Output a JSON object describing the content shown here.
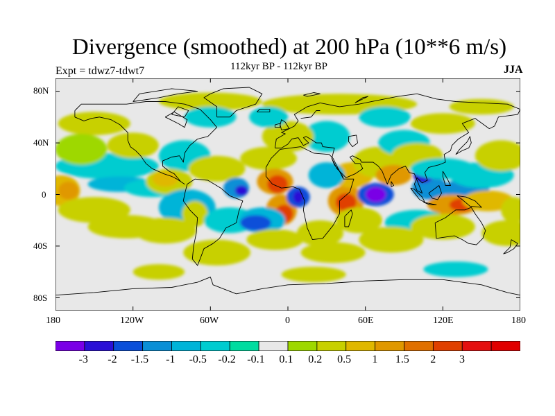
{
  "title": "Divergence (smoothed) at 200 hPa (10**6 m/s)",
  "experiment": "Expt = tdwz7-tdwt7",
  "subtitle": "112kyr BP - 112kyr BP",
  "season": "JJA",
  "lat_ticks": [
    "80N",
    "40N",
    "0",
    "40S",
    "80S"
  ],
  "lon_ticks": [
    "180",
    "120W",
    "60W",
    "0",
    "60E",
    "120E",
    "180"
  ],
  "colorbar": {
    "labels": [
      "-3",
      "-2",
      "-1.5",
      "-1",
      "-0.5",
      "-0.2",
      "-0.1",
      "0.1",
      "0.2",
      "0.5",
      "1",
      "1.5",
      "2",
      "3"
    ],
    "colors": [
      "#7a00e6",
      "#2a10d6",
      "#0a4fd9",
      "#0a8fd6",
      "#00b4d8",
      "#00ccd0",
      "#00dca0",
      "#e8e8e8",
      "#9ed800",
      "#c8d000",
      "#e0b800",
      "#e09800",
      "#e07000",
      "#e04000",
      "#e41010",
      "#e00000"
    ]
  },
  "chart_data": {
    "type": "heatmap",
    "title": "Divergence (smoothed) at 200 hPa (10**6 m/s)",
    "xlabel": "",
    "ylabel": "",
    "x_range": [
      -180,
      180
    ],
    "y_range": [
      -90,
      90
    ],
    "levels": [
      -3,
      -2,
      -1.5,
      -1,
      -0.5,
      -0.2,
      -0.1,
      0.1,
      0.2,
      0.5,
      1,
      1.5,
      2,
      3
    ],
    "features": [
      {
        "lon": 68,
        "lat": 0,
        "value": -3.5
      },
      {
        "lon": 8,
        "lat": -2,
        "value": -2.5
      },
      {
        "lon": -36,
        "lat": 3,
        "value": -1.5
      },
      {
        "lon": 110,
        "lat": 5,
        "value": -2.0
      },
      {
        "lon": 137,
        "lat": 5,
        "value": -1.2
      },
      {
        "lon": -10,
        "lat": 10,
        "value": 2.5
      },
      {
        "lon": -3,
        "lat": -15,
        "value": 2.0
      },
      {
        "lon": 45,
        "lat": -5,
        "value": 2.8
      },
      {
        "lon": 50,
        "lat": 15,
        "value": 1.5
      },
      {
        "lon": 80,
        "lat": 16,
        "value": 1.5
      },
      {
        "lon": 135,
        "lat": -8,
        "value": 2.0
      },
      {
        "lon": -170,
        "lat": 3,
        "value": 1.0
      },
      {
        "lon": -90,
        "lat": 10,
        "value": 0.8
      },
      {
        "lon": -120,
        "lat": 35,
        "value": 0.4
      },
      {
        "lon": -135,
        "lat": 5,
        "value": -0.8
      },
      {
        "lon": -20,
        "lat": -20,
        "value": -1.5
      },
      {
        "lon": 80,
        "lat": -30,
        "value": 0.5
      }
    ]
  }
}
